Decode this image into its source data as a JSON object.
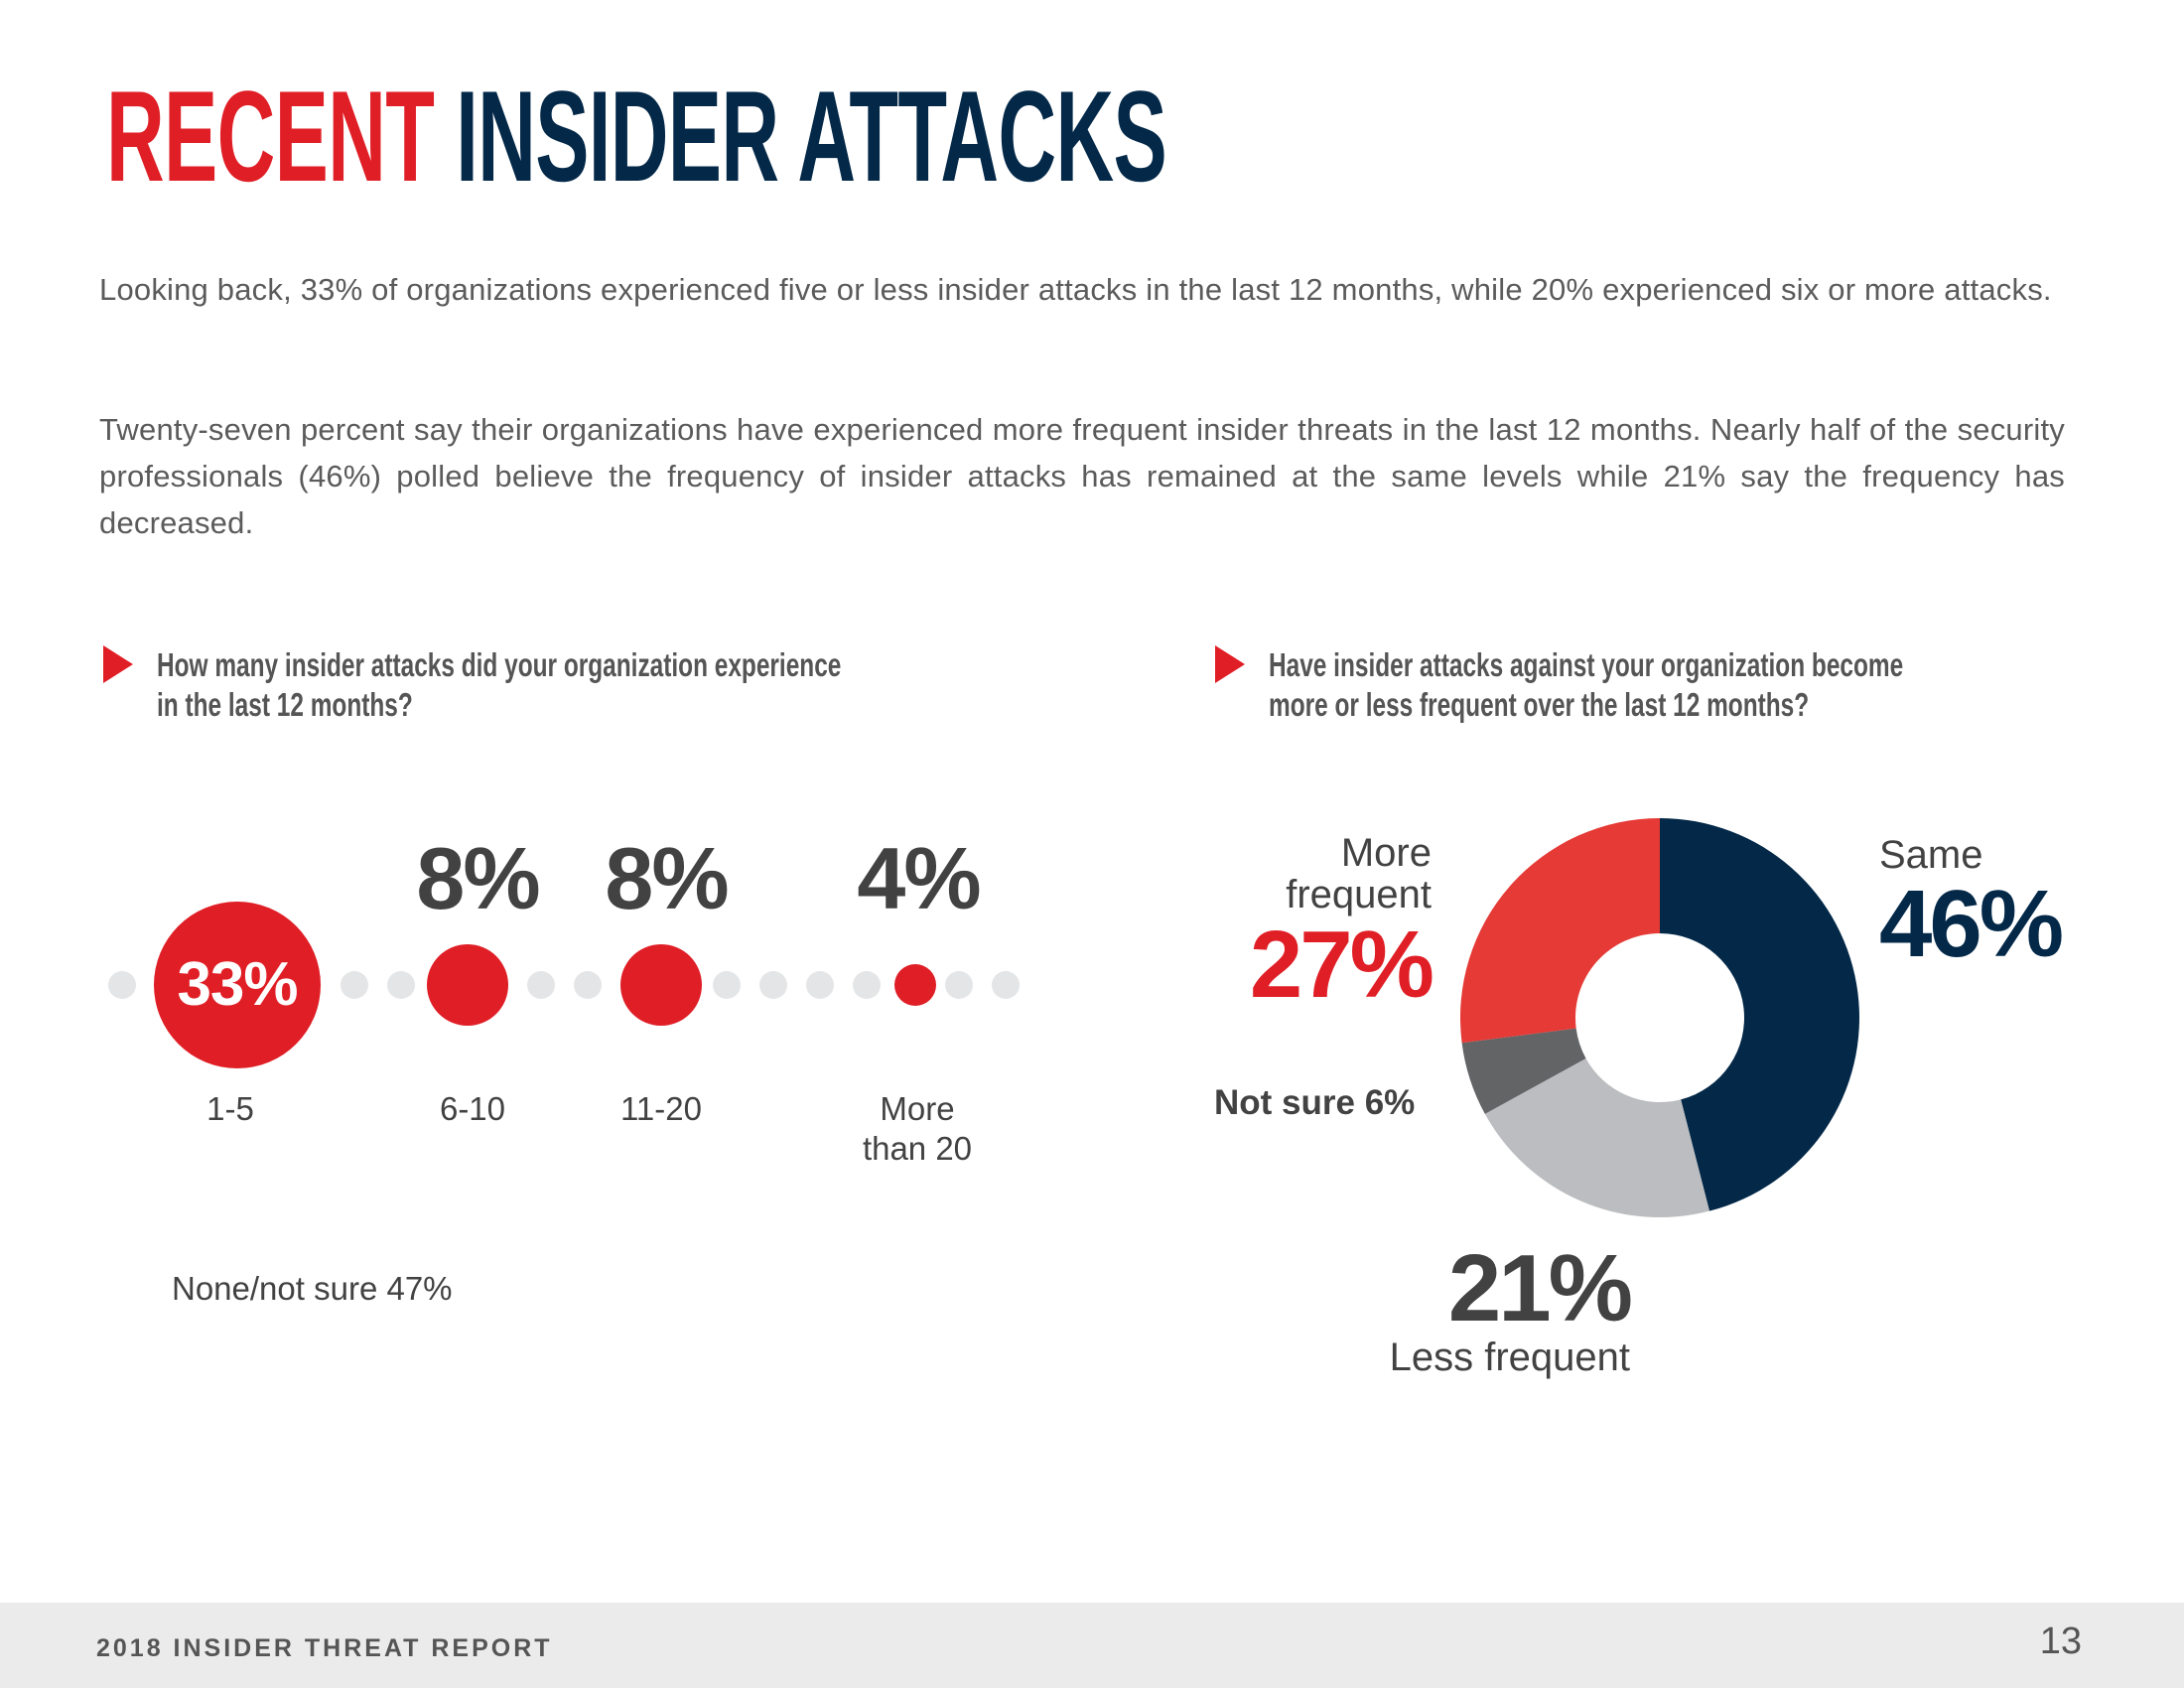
{
  "title": {
    "accent": "RECENT",
    "main": "INSIDER ATTACKS"
  },
  "body": {
    "paragraph_1": "Looking back, 33% of organizations experienced five or less insider attacks in the last 12 months, while 20% experienced  six or more attacks.",
    "paragraph_2": "Twenty-seven percent say their organizations have experienced more frequent insider threats in the last 12 months. Nearly half of the security professionals (46%) polled believe the frequency of insider attacks has remained at the same levels while 21% say the frequency has decreased."
  },
  "questions": {
    "left": {
      "line1": "How many insider attacks did your organization experience",
      "line2": "in the last 12 months?"
    },
    "right": {
      "line1": "Have insider attacks against your organization become",
      "line2": "more or less frequent over the last 12 months?"
    }
  },
  "dot_chart": {
    "items": [
      {
        "label": "1-5",
        "pct": "33%"
      },
      {
        "label": "6-10",
        "pct": "8%"
      },
      {
        "label": "11-20",
        "pct": "8%"
      },
      {
        "label_line1": "More",
        "label_line2": "than 20",
        "pct": "4%"
      }
    ],
    "note": "None/not sure 47%"
  },
  "donut": {
    "more_frequent": {
      "label_line1": "More",
      "label_line2": "frequent",
      "pct": "27%"
    },
    "same": {
      "label": "Same",
      "pct": "46%"
    },
    "less_frequent": {
      "label": "Less frequent",
      "pct": "21%"
    },
    "not_sure": {
      "label": "Not sure 6%"
    }
  },
  "colors": {
    "red": "#e01e26",
    "navy": "#032848",
    "donut_red": "#e53a36",
    "dark_gray": "#636466",
    "light_gray": "#bcbdc0",
    "dot_gray": "#e4e5e7"
  },
  "footer": {
    "report_title": "2018 INSIDER THREAT REPORT",
    "page_number": "13"
  },
  "chart_data": [
    {
      "type": "bar",
      "title": "How many insider attacks did your organization experience in the last 12 months?",
      "categories": [
        "1-5",
        "6-10",
        "11-20",
        "More than 20",
        "None/not sure"
      ],
      "values": [
        33,
        8,
        8,
        4,
        47
      ],
      "unit": "%",
      "render": "proportional dots on a dotted line"
    },
    {
      "type": "pie",
      "subtype": "donut",
      "title": "Have insider attacks against your organization become more or less frequent over the last 12 months?",
      "categories": [
        "Same",
        "Less frequent",
        "Not sure",
        "More frequent"
      ],
      "values": [
        46,
        21,
        6,
        27
      ],
      "colors": [
        "#032848",
        "#bcbdc0",
        "#636466",
        "#e53a36"
      ],
      "start_angle": "12 o'clock, clockwise",
      "unit": "%"
    }
  ]
}
